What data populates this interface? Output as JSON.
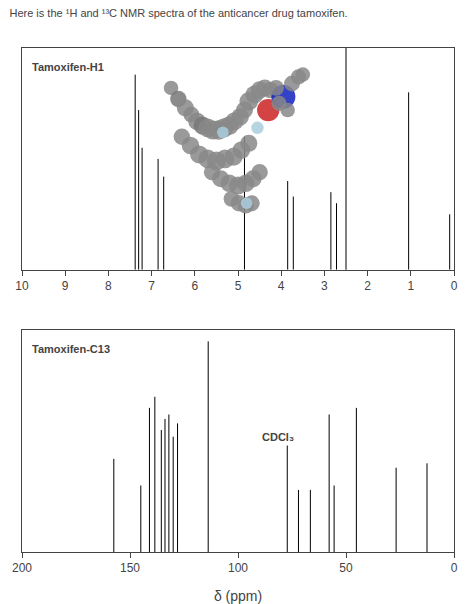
{
  "chart_data": [
    {
      "type": "spectrum",
      "title": "Here is the ¹H and ¹³C NMR spectra of the anticancer drug tamoxifen.",
      "annotations": [
        {
          "text": "Tamoxifen-H1"
        }
      ],
      "xlim": [
        10,
        0
      ],
      "xticks": [
        10,
        9,
        8,
        7,
        6,
        5,
        4,
        3,
        2,
        1,
        0
      ],
      "ylim": [
        0,
        1
      ],
      "yticks": [],
      "tick_labels": "x",
      "grid": false,
      "series": [
        {
          "type": "stem",
          "color": "#000000",
          "x": [
            7.38,
            7.3,
            7.22,
            6.85,
            6.72,
            4.85,
            3.85,
            3.72,
            2.85,
            2.72,
            1.05,
            0.1
          ],
          "values": [
            0.88,
            0.72,
            0.55,
            0.5,
            0.42,
            0.6,
            0.4,
            0.33,
            0.35,
            0.3,
            0.8,
            0.25
          ]
        },
        {
          "type": "vline",
          "color": "#000000",
          "x": [
            2.5
          ]
        },
        {
          "type": "scatter",
          "x": [
            6.55,
            6.38,
            6.22,
            6.08,
            5.95,
            5.82,
            5.7,
            5.58,
            5.45,
            5.32,
            5.2,
            5.08,
            4.95,
            4.85,
            4.75,
            4.62,
            4.5,
            4.38,
            4.25,
            6.3,
            6.1,
            5.9,
            5.7,
            5.5,
            5.3,
            5.1,
            4.92,
            4.75,
            5.6,
            5.4,
            5.2,
            5.0,
            4.82,
            4.65,
            4.5,
            5.15,
            4.98,
            4.82,
            4.68,
            4.55,
            5.35,
            4.8,
            4.3,
            3.95,
            3.75,
            3.6,
            3.5,
            4.12,
            4.05,
            3.85
          ],
          "values": [
            0.82,
            0.77,
            0.73,
            0.7,
            0.67,
            0.65,
            0.64,
            0.63,
            0.63,
            0.64,
            0.65,
            0.67,
            0.69,
            0.72,
            0.76,
            0.79,
            0.81,
            0.82,
            0.81,
            0.6,
            0.56,
            0.52,
            0.5,
            0.49,
            0.5,
            0.51,
            0.54,
            0.57,
            0.44,
            0.41,
            0.39,
            0.38,
            0.39,
            0.41,
            0.44,
            0.32,
            0.3,
            0.29,
            0.3,
            0.64,
            0.62,
            0.3,
            0.72,
            0.78,
            0.84,
            0.87,
            0.88,
            0.82,
            0.75,
            0.72
          ],
          "sizes": [
            55,
            70,
            75,
            65,
            80,
            85,
            90,
            95,
            100,
            95,
            90,
            85,
            80,
            75,
            90,
            85,
            80,
            75,
            70,
            70,
            80,
            85,
            90,
            95,
            90,
            85,
            80,
            75,
            70,
            75,
            80,
            85,
            80,
            75,
            70,
            65,
            70,
            68,
            65,
            40,
            35,
            35,
            130,
            150,
            65,
            60,
            55,
            65,
            60,
            55
          ],
          "colors": [
            "#888888",
            "#777777",
            "#888888",
            "#888888",
            "#888888",
            "#777777",
            "#888888",
            "#888888",
            "#888888",
            "#888888",
            "#888888",
            "#888888",
            "#888888",
            "#888888",
            "#888888",
            "#888888",
            "#888888",
            "#888888",
            "#888888",
            "#888888",
            "#888888",
            "#888888",
            "#888888",
            "#888888",
            "#888888",
            "#888888",
            "#888888",
            "#888888",
            "#888888",
            "#888888",
            "#888888",
            "#888888",
            "#888888",
            "#888888",
            "#888888",
            "#888888",
            "#888888",
            "#888888",
            "#888888",
            "#aaccdd",
            "#aaccdd",
            "#aaccdd",
            "#cc2222",
            "#1122bb",
            "#888888",
            "#888888",
            "#888888",
            "#888888",
            "#888888",
            "#888888"
          ]
        }
      ]
    },
    {
      "type": "spectrum",
      "xlabel": "δ (ppm)",
      "annotations": [
        {
          "text": "Tamoxifen-C13"
        },
        {
          "text": "CDCl₃",
          "x": 90,
          "y": 0.52
        }
      ],
      "xlim": [
        200,
        0
      ],
      "xticks": [
        200,
        150,
        100,
        50,
        0
      ],
      "ylim": [
        0,
        1
      ],
      "yticks": [],
      "tick_labels": "x",
      "grid": false,
      "series": [
        {
          "type": "stem",
          "color": "#000000",
          "x": [
            157.5,
            145.0,
            141.0,
            138.5,
            135.5,
            133.8,
            132.0,
            130.0,
            128.0,
            113.8,
            77.2,
            72.0,
            66.5,
            57.8,
            55.5,
            45.2,
            26.8,
            12.5
          ],
          "values": [
            0.42,
            0.3,
            0.65,
            0.7,
            0.55,
            0.6,
            0.62,
            0.52,
            0.58,
            0.95,
            0.48,
            0.28,
            0.28,
            0.62,
            0.3,
            0.65,
            0.38,
            0.4
          ]
        }
      ]
    }
  ]
}
